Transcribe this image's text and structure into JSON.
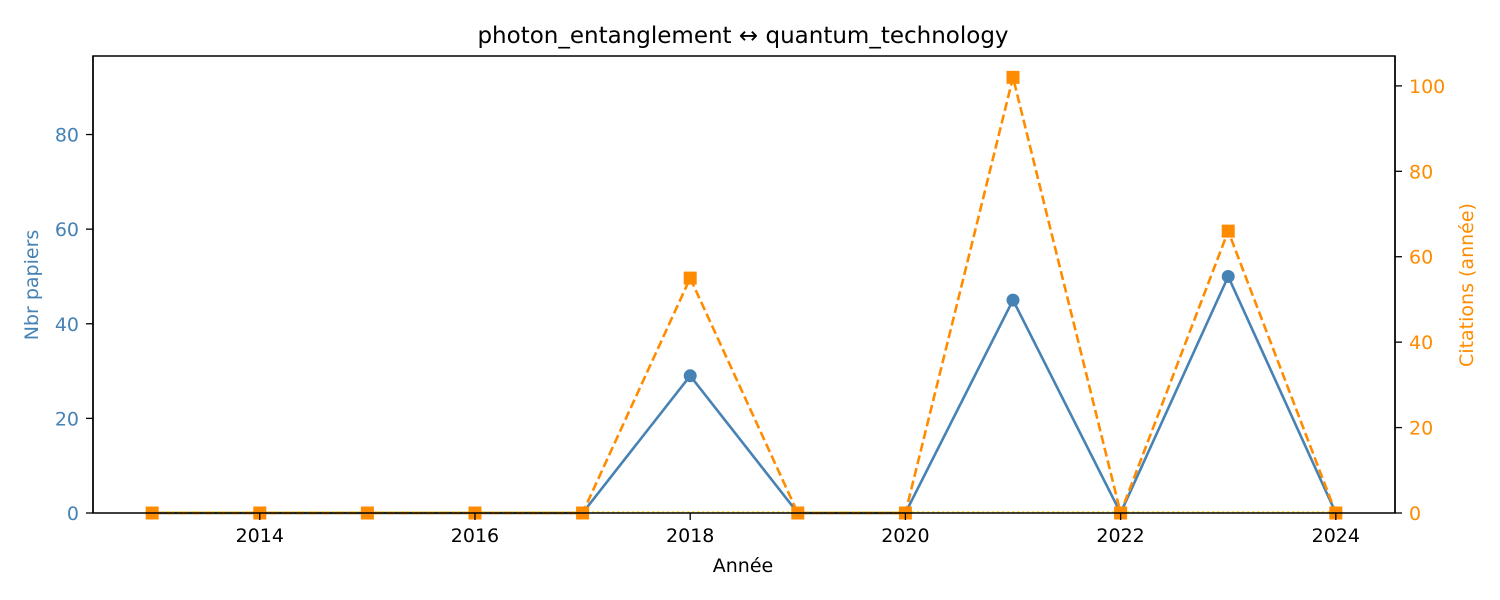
{
  "chart_data": {
    "type": "line",
    "title": "photon_entanglement  ↔  quantum_technology",
    "xlabel": "Année",
    "ylabel_left": "Nbr papiers",
    "ylabel_right": "Citations (année)",
    "x": [
      2013,
      2014,
      2015,
      2016,
      2017,
      2018,
      2019,
      2020,
      2021,
      2022,
      2023,
      2024
    ],
    "xlim": [
      2012.45,
      2024.55
    ],
    "x_ticks": [
      2014,
      2016,
      2018,
      2020,
      2022,
      2024
    ],
    "ylim_left": [
      0,
      96.6
    ],
    "y_ticks_left": [
      0,
      20,
      40,
      60,
      80
    ],
    "ylim_right": [
      0,
      107
    ],
    "y_ticks_right": [
      0,
      20,
      40,
      60,
      80,
      100
    ],
    "grid": false,
    "series": [
      {
        "axis": "left",
        "values": [
          0,
          0,
          0,
          0,
          0,
          29,
          0,
          0,
          45,
          0,
          50,
          0
        ],
        "color": "#4682b4",
        "line_style": "solid",
        "marker": "circle"
      },
      {
        "axis": "right",
        "values": [
          0,
          0,
          0,
          0,
          0,
          55,
          0,
          0,
          102,
          0,
          66,
          0
        ],
        "color": "#ff8c00",
        "line_style": "dashed",
        "marker": "square"
      }
    ],
    "colors": {
      "left_axis": "#4682b4",
      "right_axis": "#ff8c00",
      "zero_line": "#ffd700"
    }
  }
}
